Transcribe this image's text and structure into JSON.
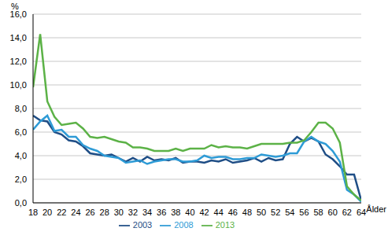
{
  "chart_data": {
    "type": "line",
    "xlabel": "Ålder",
    "ylabel": "%",
    "x": [
      18,
      19,
      20,
      21,
      22,
      23,
      24,
      25,
      26,
      27,
      28,
      29,
      30,
      31,
      32,
      33,
      34,
      35,
      36,
      37,
      38,
      39,
      40,
      41,
      42,
      43,
      44,
      45,
      46,
      47,
      48,
      49,
      50,
      51,
      52,
      53,
      54,
      55,
      56,
      57,
      58,
      59,
      60,
      61,
      62,
      63,
      64
    ],
    "series": [
      {
        "name": "2003",
        "color": "#1f4e86",
        "values": [
          7.4,
          7.0,
          6.9,
          6.0,
          5.8,
          5.3,
          5.2,
          4.8,
          4.2,
          4.1,
          4.0,
          4.1,
          3.8,
          3.5,
          3.8,
          3.5,
          3.9,
          3.6,
          3.7,
          3.6,
          3.8,
          3.4,
          3.5,
          3.5,
          3.4,
          3.6,
          3.5,
          3.7,
          3.4,
          3.5,
          3.6,
          3.8,
          3.5,
          3.8,
          3.6,
          3.7,
          5.0,
          5.6,
          5.2,
          5.5,
          5.2,
          4.1,
          3.7,
          3.1,
          2.4,
          2.4,
          0.2
        ]
      },
      {
        "name": "2008",
        "color": "#2e9bd6",
        "values": [
          6.2,
          6.9,
          7.4,
          6.1,
          6.2,
          5.6,
          5.6,
          4.9,
          4.6,
          4.4,
          4.0,
          3.9,
          3.8,
          3.4,
          3.5,
          3.6,
          3.3,
          3.5,
          3.6,
          3.7,
          3.7,
          3.5,
          3.5,
          3.6,
          4.0,
          3.8,
          3.9,
          3.9,
          3.7,
          3.7,
          3.8,
          3.8,
          4.1,
          4.0,
          3.9,
          4.0,
          4.2,
          4.2,
          5.2,
          5.6,
          5.2,
          5.0,
          4.4,
          3.5,
          1.1,
          0.7,
          0.1
        ]
      },
      {
        "name": "2013",
        "color": "#5cb247",
        "values": [
          9.8,
          14.3,
          8.6,
          7.3,
          6.6,
          6.7,
          6.8,
          6.3,
          5.6,
          5.5,
          5.6,
          5.4,
          5.2,
          5.1,
          4.7,
          4.7,
          4.6,
          4.4,
          4.4,
          4.4,
          4.6,
          4.4,
          4.6,
          4.6,
          4.6,
          4.9,
          4.7,
          4.8,
          4.7,
          4.7,
          4.6,
          4.8,
          5.0,
          5.0,
          5.0,
          5.0,
          5.1,
          5.1,
          5.3,
          6.0,
          6.8,
          6.8,
          6.3,
          5.1,
          1.4,
          0.7,
          0.2
        ]
      }
    ],
    "xlim": [
      18,
      64
    ],
    "xticks": [
      18,
      20,
      22,
      24,
      26,
      28,
      30,
      32,
      34,
      36,
      38,
      40,
      42,
      44,
      46,
      48,
      50,
      52,
      54,
      56,
      58,
      60,
      62,
      64
    ],
    "ylim": [
      0,
      16
    ],
    "yticks": [
      {
        "value": 0,
        "label": "0,0"
      },
      {
        "value": 2,
        "label": "2,0"
      },
      {
        "value": 4,
        "label": "4,0"
      },
      {
        "value": 6,
        "label": "6,0"
      },
      {
        "value": 8,
        "label": "8,0"
      },
      {
        "value": 10,
        "label": "10,0"
      },
      {
        "value": 12,
        "label": "12,0"
      },
      {
        "value": 14,
        "label": "14,0"
      },
      {
        "value": 16,
        "label": "16,0"
      }
    ],
    "grid": true,
    "legend": "bottom"
  }
}
